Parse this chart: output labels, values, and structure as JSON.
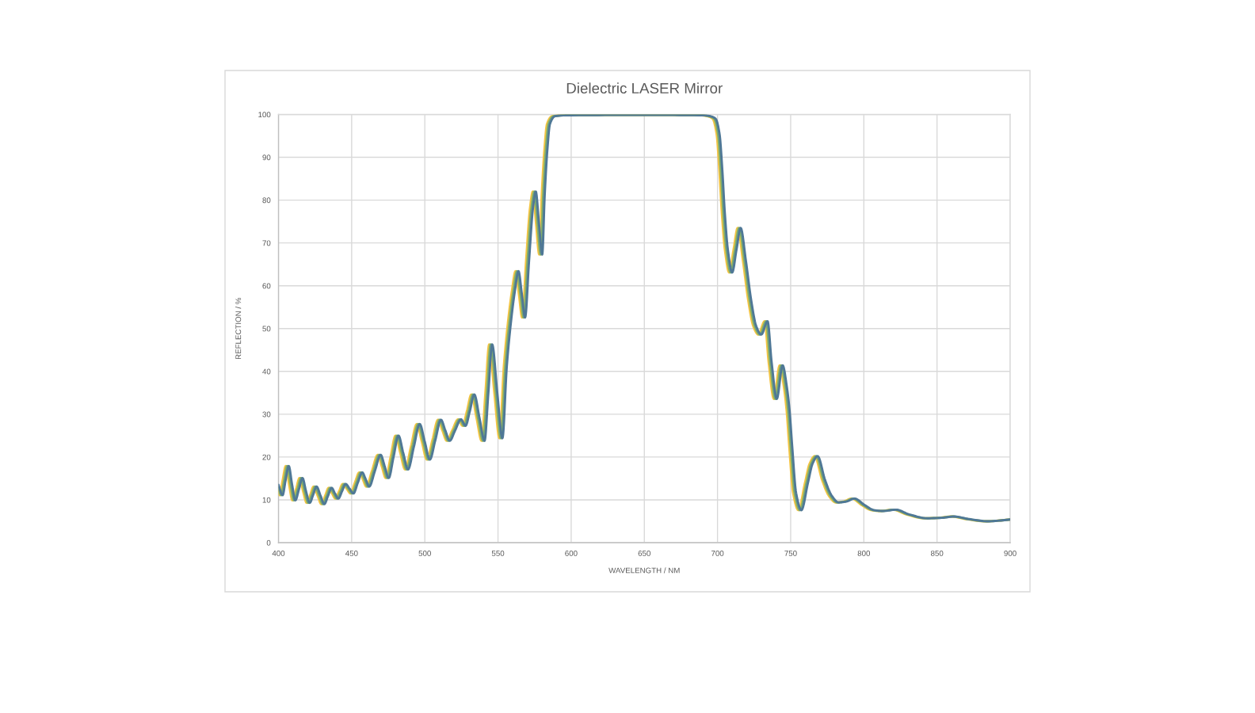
{
  "chart_data": {
    "type": "line",
    "title": "Dielectric LASER Mirror",
    "xlabel": "WAVELENGTH / NM",
    "ylabel": "REFLECTION / %",
    "xlim": [
      400,
      900
    ],
    "ylim": [
      0,
      100
    ],
    "xticks": [
      400,
      450,
      500,
      550,
      600,
      650,
      700,
      750,
      800,
      850,
      900
    ],
    "yticks": [
      0,
      10,
      20,
      30,
      40,
      50,
      60,
      70,
      80,
      90,
      100
    ],
    "grid": true,
    "series": [
      {
        "color": "#f3c444",
        "x": [
          400.0,
          400.8,
          402.8,
          405.0,
          407.3,
          409.5,
          412.0,
          414.4,
          416.8,
          419.3,
          421.7,
          424.0,
          426.7,
          429.3,
          431.8,
          434.3,
          436.6,
          438.9,
          441.4,
          443.9,
          446.6,
          449.2,
          452.2,
          455.2,
          457.6,
          460.0,
          463.9,
          467.8,
          470.6,
          473.3,
          476.6,
          480.0,
          483.2,
          486.5,
          490.5,
          494.5,
          498.0,
          501.4,
          505.2,
          509.0,
          512.0,
          515.0,
          518.8,
          522.7,
          525.8,
          528.8,
          531.8,
          535.4,
          538.8,
          541.4,
          544.0,
          547.5,
          551.0,
          554.0,
          556.7,
          559.4,
          562.0,
          564.3,
          566.5,
          569.2,
          571.9,
          573.8,
          576.0,
          578.2,
          579.9,
          581.7,
          583.5,
          587.0,
          594.0,
          649.0,
          689.0,
          693.0,
          696.7,
          699.4,
          701.2,
          703.0,
          705.1,
          708.0,
          711.0,
          713.8,
          717.4,
          721.0,
          724.5,
          727.9,
          732.2,
          735.0,
          738.5,
          742.5,
          745.4,
          747.2,
          749.0,
          751.7,
          755.3,
          759.8,
          763.0,
          766.4,
          771.5,
          776.0,
          780.8,
          786.0,
          791.6,
          798.5,
          805.0,
          811.0,
          820.0,
          829.0,
          841.6,
          851.0,
          859.6,
          870.0,
          883.0,
          900.0
        ],
        "values": [
          12.0,
          11.1,
          14.5,
          17.9,
          13.5,
          9.9,
          12.5,
          15.1,
          12.0,
          9.3,
          11.2,
          13.1,
          11.0,
          9.0,
          10.9,
          12.8,
          11.5,
          10.3,
          12.0,
          13.7,
          12.6,
          11.5,
          14.0,
          16.4,
          14.8,
          13.1,
          16.8,
          20.5,
          17.8,
          15.1,
          20.0,
          25.0,
          21.0,
          17.1,
          22.4,
          27.7,
          23.5,
          19.4,
          24.0,
          28.7,
          26.2,
          23.8,
          26.3,
          28.8,
          27.3,
          30.8,
          34.6,
          29.0,
          23.8,
          35.0,
          46.3,
          35.0,
          24.4,
          41.2,
          51.1,
          58.5,
          63.4,
          58.0,
          52.6,
          65.8,
          78.2,
          82.0,
          74.5,
          67.3,
          81.2,
          91.7,
          97.8,
          99.6,
          99.8,
          99.9,
          99.8,
          99.6,
          99.0,
          95.4,
          87.4,
          76.9,
          68.3,
          63.1,
          68.5,
          73.5,
          65.8,
          56.6,
          50.5,
          48.6,
          51.7,
          42.0,
          33.6,
          41.4,
          36.3,
          31.0,
          22.6,
          11.6,
          7.6,
          14.0,
          18.5,
          20.2,
          14.6,
          11.0,
          9.4,
          9.6,
          10.3,
          8.8,
          7.6,
          7.4,
          7.7,
          6.6,
          5.7,
          5.8,
          6.1,
          5.5,
          5.0,
          5.4
        ]
      },
      {
        "color": "#7fae6e",
        "x": [
          400.0,
          401.8,
          403.8,
          406.0,
          408.3,
          410.5,
          413.0,
          415.4,
          417.8,
          420.3,
          422.7,
          425.0,
          427.7,
          430.3,
          432.8,
          435.3,
          437.6,
          439.9,
          442.4,
          444.9,
          447.6,
          450.2,
          453.2,
          456.2,
          458.6,
          461.0,
          464.9,
          468.8,
          471.6,
          474.3,
          477.6,
          481.0,
          484.2,
          487.5,
          491.5,
          495.5,
          499.0,
          502.4,
          506.2,
          510.0,
          513.0,
          516.0,
          519.8,
          523.7,
          526.8,
          529.8,
          532.8,
          536.4,
          539.8,
          542.4,
          545.0,
          548.5,
          552.0,
          555.0,
          557.7,
          560.4,
          563.0,
          565.3,
          567.5,
          570.2,
          572.9,
          574.8,
          577.0,
          579.2,
          580.9,
          582.7,
          584.5,
          588.0,
          595.0,
          650.0,
          690.0,
          694.0,
          697.7,
          700.4,
          702.2,
          704.0,
          706.1,
          709.0,
          712.0,
          714.8,
          718.4,
          722.0,
          725.5,
          728.9,
          733.2,
          736.0,
          739.5,
          743.5,
          746.4,
          748.2,
          750.0,
          752.7,
          756.3,
          760.8,
          764.0,
          767.4,
          772.5,
          777.0,
          781.8,
          787.0,
          792.6,
          799.5,
          806.0,
          812.0,
          821.0,
          830.0,
          842.6,
          852.0,
          860.6,
          871.0,
          884.0,
          900.0
        ],
        "values": [
          12.8,
          11.1,
          14.5,
          17.9,
          13.5,
          9.9,
          12.5,
          15.1,
          12.0,
          9.3,
          11.2,
          13.1,
          11.0,
          9.0,
          10.9,
          12.8,
          11.5,
          10.3,
          12.0,
          13.7,
          12.6,
          11.5,
          14.0,
          16.4,
          14.8,
          13.1,
          16.8,
          20.5,
          17.8,
          15.1,
          20.0,
          25.0,
          21.0,
          17.1,
          22.4,
          27.7,
          23.5,
          19.4,
          24.0,
          28.7,
          26.2,
          23.8,
          26.3,
          28.8,
          27.3,
          30.8,
          34.6,
          29.0,
          23.8,
          35.0,
          46.3,
          35.0,
          24.4,
          41.2,
          51.1,
          58.5,
          63.4,
          58.0,
          52.6,
          65.8,
          78.2,
          82.0,
          74.5,
          67.3,
          81.2,
          91.7,
          97.8,
          99.6,
          99.8,
          99.9,
          99.8,
          99.6,
          99.0,
          95.4,
          87.4,
          76.9,
          68.3,
          63.1,
          68.5,
          73.5,
          65.8,
          56.6,
          50.5,
          48.6,
          51.7,
          42.0,
          33.6,
          41.4,
          36.3,
          31.0,
          22.6,
          11.6,
          7.6,
          14.0,
          18.5,
          20.2,
          14.6,
          11.0,
          9.4,
          9.6,
          10.3,
          8.8,
          7.6,
          7.4,
          7.7,
          6.6,
          5.7,
          5.8,
          6.1,
          5.5,
          5.0,
          5.4
        ]
      },
      {
        "color": "#4f7896",
        "x": [
          400.0,
          402.8,
          404.8,
          407.0,
          409.3,
          411.5,
          414.0,
          416.4,
          418.8,
          421.3,
          423.7,
          426.0,
          428.7,
          431.3,
          433.8,
          436.3,
          438.6,
          440.9,
          443.4,
          445.9,
          448.6,
          451.2,
          454.2,
          457.2,
          459.6,
          462.0,
          465.9,
          469.8,
          472.6,
          475.3,
          478.6,
          482.0,
          485.2,
          488.5,
          492.5,
          496.5,
          500.0,
          503.4,
          507.2,
          511.0,
          514.0,
          517.0,
          520.8,
          524.7,
          527.8,
          530.8,
          533.8,
          537.4,
          540.8,
          543.4,
          546.0,
          549.5,
          553.0,
          556.0,
          558.7,
          561.4,
          564.0,
          566.3,
          568.5,
          571.2,
          573.9,
          575.8,
          578.0,
          580.2,
          581.9,
          583.7,
          585.5,
          589.0,
          596.0,
          651.0,
          691.0,
          695.0,
          698.7,
          701.4,
          703.2,
          705.0,
          707.1,
          710.0,
          713.0,
          715.8,
          719.4,
          723.0,
          726.5,
          729.9,
          734.2,
          737.0,
          740.5,
          744.5,
          747.4,
          749.2,
          751.0,
          753.7,
          757.3,
          761.8,
          765.0,
          768.4,
          773.5,
          778.0,
          782.8,
          788.0,
          793.6,
          800.5,
          807.0,
          813.0,
          822.0,
          831.0,
          843.6,
          853.0,
          861.6,
          872.0,
          885.0,
          900.0
        ],
        "values": [
          13.5,
          11.1,
          14.5,
          17.9,
          13.5,
          9.9,
          12.5,
          15.1,
          12.0,
          9.3,
          11.2,
          13.1,
          11.0,
          9.0,
          10.9,
          12.8,
          11.5,
          10.3,
          12.0,
          13.7,
          12.6,
          11.5,
          14.0,
          16.4,
          14.8,
          13.1,
          16.8,
          20.5,
          17.8,
          15.1,
          20.0,
          25.0,
          21.0,
          17.1,
          22.4,
          27.7,
          23.5,
          19.4,
          24.0,
          28.7,
          26.2,
          23.8,
          26.3,
          28.8,
          27.3,
          30.8,
          34.6,
          29.0,
          23.8,
          35.0,
          46.3,
          35.0,
          24.4,
          41.2,
          51.1,
          58.5,
          63.4,
          58.0,
          52.6,
          65.8,
          78.2,
          82.0,
          74.5,
          67.3,
          81.2,
          91.7,
          97.8,
          99.6,
          99.8,
          99.9,
          99.8,
          99.6,
          99.0,
          95.4,
          87.4,
          76.9,
          68.3,
          63.1,
          68.5,
          73.5,
          65.8,
          56.6,
          50.5,
          48.6,
          51.7,
          42.0,
          33.6,
          41.4,
          36.3,
          31.0,
          22.6,
          11.6,
          7.6,
          14.0,
          18.5,
          20.2,
          14.6,
          11.0,
          9.4,
          9.6,
          10.3,
          8.8,
          7.6,
          7.4,
          7.7,
          6.6,
          5.7,
          5.8,
          6.1,
          5.5,
          5.0,
          5.4
        ]
      }
    ]
  }
}
